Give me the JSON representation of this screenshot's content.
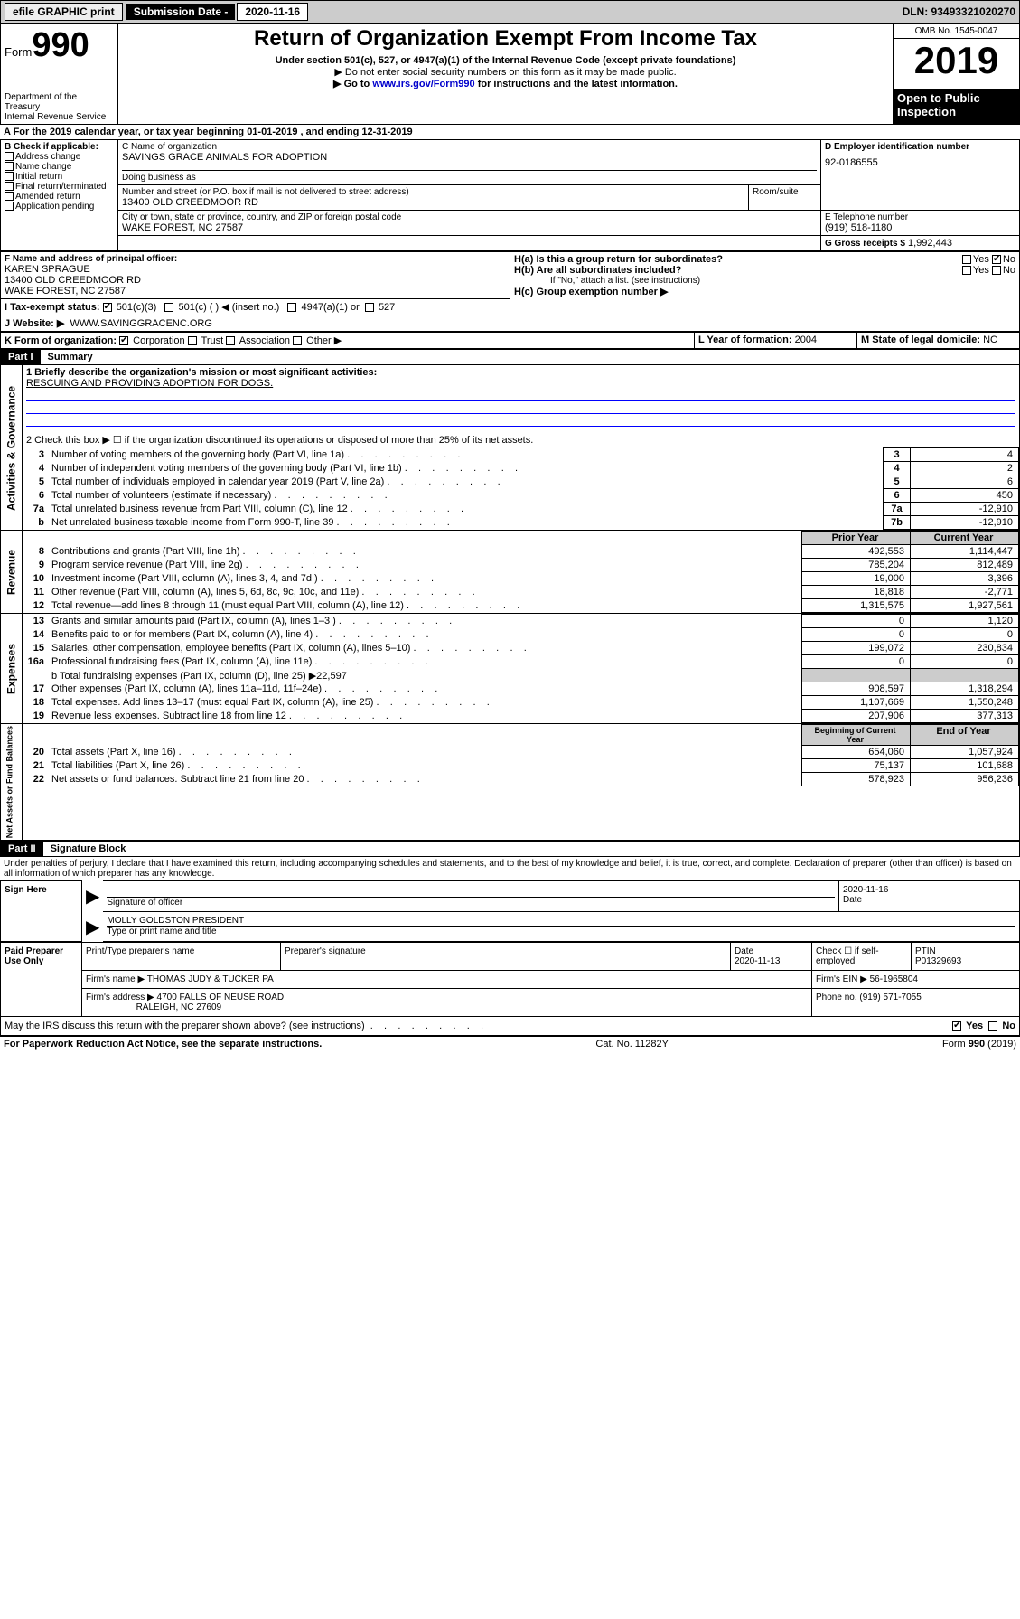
{
  "topbar": {
    "efile": "efile GRAPHIC print",
    "sub_label": "Submission Date - 2020-11-16",
    "dln": "DLN: 93493321020270"
  },
  "header": {
    "form_word": "Form",
    "form_num": "990",
    "dept": "Department of the Treasury\nInternal Revenue Service",
    "title": "Return of Organization Exempt From Income Tax",
    "subtitle": "Under section 501(c), 527, or 4947(a)(1) of the Internal Revenue Code (except private foundations)",
    "note1": "▶ Do not enter social security numbers on this form as it may be made public.",
    "note2_pre": "▶ Go to ",
    "note2_link": "www.irs.gov/Form990",
    "note2_post": " for instructions and the latest information.",
    "omb": "OMB No. 1545-0047",
    "year": "2019",
    "open": "Open to Public Inspection"
  },
  "section_a": {
    "text": "A For the 2019 calendar year, or tax year beginning 01-01-2019   , and ending 12-31-2019"
  },
  "section_b": {
    "label": "B Check if applicable:",
    "opts": [
      "Address change",
      "Name change",
      "Initial return",
      "Final return/terminated",
      "Amended return",
      "Application pending"
    ]
  },
  "section_c": {
    "name_label": "C Name of organization",
    "name": "SAVINGS GRACE ANIMALS FOR ADOPTION",
    "dba_label": "Doing business as",
    "addr_label": "Number and street (or P.O. box if mail is not delivered to street address)",
    "room_label": "Room/suite",
    "addr": "13400 OLD CREEDMOOR RD",
    "city_label": "City or town, state or province, country, and ZIP or foreign postal code",
    "city": "WAKE FOREST, NC  27587"
  },
  "section_d": {
    "label": "D Employer identification number",
    "val": "92-0186555"
  },
  "section_e": {
    "label": "E Telephone number",
    "val": "(919) 518-1180"
  },
  "section_g": {
    "label": "G Gross receipts $",
    "val": "1,992,443"
  },
  "section_f": {
    "label": "F  Name and address of principal officer:",
    "name": "KAREN SPRAGUE",
    "addr1": "13400 OLD CREEDMOOR RD",
    "addr2": "WAKE FOREST, NC  27587"
  },
  "section_h": {
    "a_label": "H(a)  Is this a group return for subordinates?",
    "b_label": "H(b)  Are all subordinates included?",
    "b_note": "If \"No,\" attach a list. (see instructions)",
    "c_label": "H(c)  Group exemption number ▶",
    "yes": "Yes",
    "no": "No"
  },
  "section_i": {
    "label": "I    Tax-exempt status:",
    "o1": "501(c)(3)",
    "o2": "501(c) (  ) ◀ (insert no.)",
    "o3": "4947(a)(1) or",
    "o4": "527"
  },
  "section_j": {
    "label": "J    Website: ▶",
    "val": "WWW.SAVINGGRACENC.ORG"
  },
  "section_k": {
    "label": "K Form of organization:",
    "o1": "Corporation",
    "o2": "Trust",
    "o3": "Association",
    "o4": "Other ▶"
  },
  "section_l": {
    "label": "L Year of formation:",
    "val": "2004"
  },
  "section_m": {
    "label": "M State of legal domicile:",
    "val": "NC"
  },
  "part1": {
    "label": "Part I",
    "title": "Summary"
  },
  "summary": {
    "l1_label": "1  Briefly describe the organization's mission or most significant activities:",
    "l1_text": "RESCUING AND PROVIDING ADOPTION FOR DOGS.",
    "l2_label": "2   Check this box ▶ ☐  if the organization discontinued its operations or disposed of more than 25% of its net assets.",
    "vert1": "Activities & Governance",
    "vert2": "Revenue",
    "vert3": "Expenses",
    "vert4": "Net Assets or Fund Balances",
    "lines_gov": [
      {
        "n": "3",
        "t": "Number of voting members of the governing body (Part VI, line 1a)",
        "b": "3",
        "v": "4"
      },
      {
        "n": "4",
        "t": "Number of independent voting members of the governing body (Part VI, line 1b)",
        "b": "4",
        "v": "2"
      },
      {
        "n": "5",
        "t": "Total number of individuals employed in calendar year 2019 (Part V, line 2a)",
        "b": "5",
        "v": "6"
      },
      {
        "n": "6",
        "t": "Total number of volunteers (estimate if necessary)",
        "b": "6",
        "v": "450"
      },
      {
        "n": "7a",
        "t": "Total unrelated business revenue from Part VIII, column (C), line 12",
        "b": "7a",
        "v": "-12,910"
      },
      {
        "n": "b",
        "t": "Net unrelated business taxable income from Form 990-T, line 39",
        "b": "7b",
        "v": "-12,910"
      }
    ],
    "hdr_prior": "Prior Year",
    "hdr_curr": "Current Year",
    "lines_rev": [
      {
        "n": "8",
        "t": "Contributions and grants (Part VIII, line 1h)",
        "p": "492,553",
        "c": "1,114,447"
      },
      {
        "n": "9",
        "t": "Program service revenue (Part VIII, line 2g)",
        "p": "785,204",
        "c": "812,489"
      },
      {
        "n": "10",
        "t": "Investment income (Part VIII, column (A), lines 3, 4, and 7d )",
        "p": "19,000",
        "c": "3,396"
      },
      {
        "n": "11",
        "t": "Other revenue (Part VIII, column (A), lines 5, 6d, 8c, 9c, 10c, and 11e)",
        "p": "18,818",
        "c": "-2,771"
      },
      {
        "n": "12",
        "t": "Total revenue—add lines 8 through 11 (must equal Part VIII, column (A), line 12)",
        "p": "1,315,575",
        "c": "1,927,561"
      }
    ],
    "lines_exp": [
      {
        "n": "13",
        "t": "Grants and similar amounts paid (Part IX, column (A), lines 1–3 )",
        "p": "0",
        "c": "1,120"
      },
      {
        "n": "14",
        "t": "Benefits paid to or for members (Part IX, column (A), line 4)",
        "p": "0",
        "c": "0"
      },
      {
        "n": "15",
        "t": "Salaries, other compensation, employee benefits (Part IX, column (A), lines 5–10)",
        "p": "199,072",
        "c": "230,834"
      },
      {
        "n": "16a",
        "t": "Professional fundraising fees (Part IX, column (A), line 11e)",
        "p": "0",
        "c": "0"
      }
    ],
    "line_b": "b   Total fundraising expenses (Part IX, column (D), line 25) ▶22,597",
    "lines_exp2": [
      {
        "n": "17",
        "t": "Other expenses (Part IX, column (A), lines 11a–11d, 11f–24e)",
        "p": "908,597",
        "c": "1,318,294"
      },
      {
        "n": "18",
        "t": "Total expenses. Add lines 13–17 (must equal Part IX, column (A), line 25)",
        "p": "1,107,669",
        "c": "1,550,248"
      },
      {
        "n": "19",
        "t": "Revenue less expenses. Subtract line 18 from line 12",
        "p": "207,906",
        "c": "377,313"
      }
    ],
    "hdr_beg": "Beginning of Current Year",
    "hdr_end": "End of Year",
    "lines_net": [
      {
        "n": "20",
        "t": "Total assets (Part X, line 16)",
        "p": "654,060",
        "c": "1,057,924"
      },
      {
        "n": "21",
        "t": "Total liabilities (Part X, line 26)",
        "p": "75,137",
        "c": "101,688"
      },
      {
        "n": "22",
        "t": "Net assets or fund balances. Subtract line 21 from line 20",
        "p": "578,923",
        "c": "956,236"
      }
    ]
  },
  "part2": {
    "label": "Part II",
    "title": "Signature Block"
  },
  "sig": {
    "penalty": "Under penalties of perjury, I declare that I have examined this return, including accompanying schedules and statements, and to the best of my knowledge and belief, it is true, correct, and complete. Declaration of preparer (other than officer) is based on all information of which preparer has any knowledge.",
    "sign_here": "Sign Here",
    "sig_officer": "Signature of officer",
    "sig_date": "2020-11-16",
    "date_label": "Date",
    "name_title": "MOLLY GOLDSTON PRESIDENT",
    "name_title_label": "Type or print name and title",
    "paid": "Paid Preparer Use Only",
    "prep_name_label": "Print/Type preparer's name",
    "prep_sig_label": "Preparer's signature",
    "prep_date": "2020-11-13",
    "check_label": "Check ☐ if self-employed",
    "ptin_label": "PTIN",
    "ptin": "P01329693",
    "firm_name_label": "Firm's name    ▶",
    "firm_name": "THOMAS JUDY & TUCKER PA",
    "firm_ein_label": "Firm's EIN ▶",
    "firm_ein": "56-1965804",
    "firm_addr_label": "Firm's address ▶",
    "firm_addr1": "4700 FALLS OF NEUSE ROAD",
    "firm_addr2": "RALEIGH, NC  27609",
    "phone_label": "Phone no.",
    "phone": "(919) 571-7055",
    "discuss": "May the IRS discuss this return with the preparer shown above? (see instructions)"
  },
  "footer": {
    "paperwork": "For Paperwork Reduction Act Notice, see the separate instructions.",
    "cat": "Cat. No. 11282Y",
    "form": "Form 990 (2019)"
  }
}
